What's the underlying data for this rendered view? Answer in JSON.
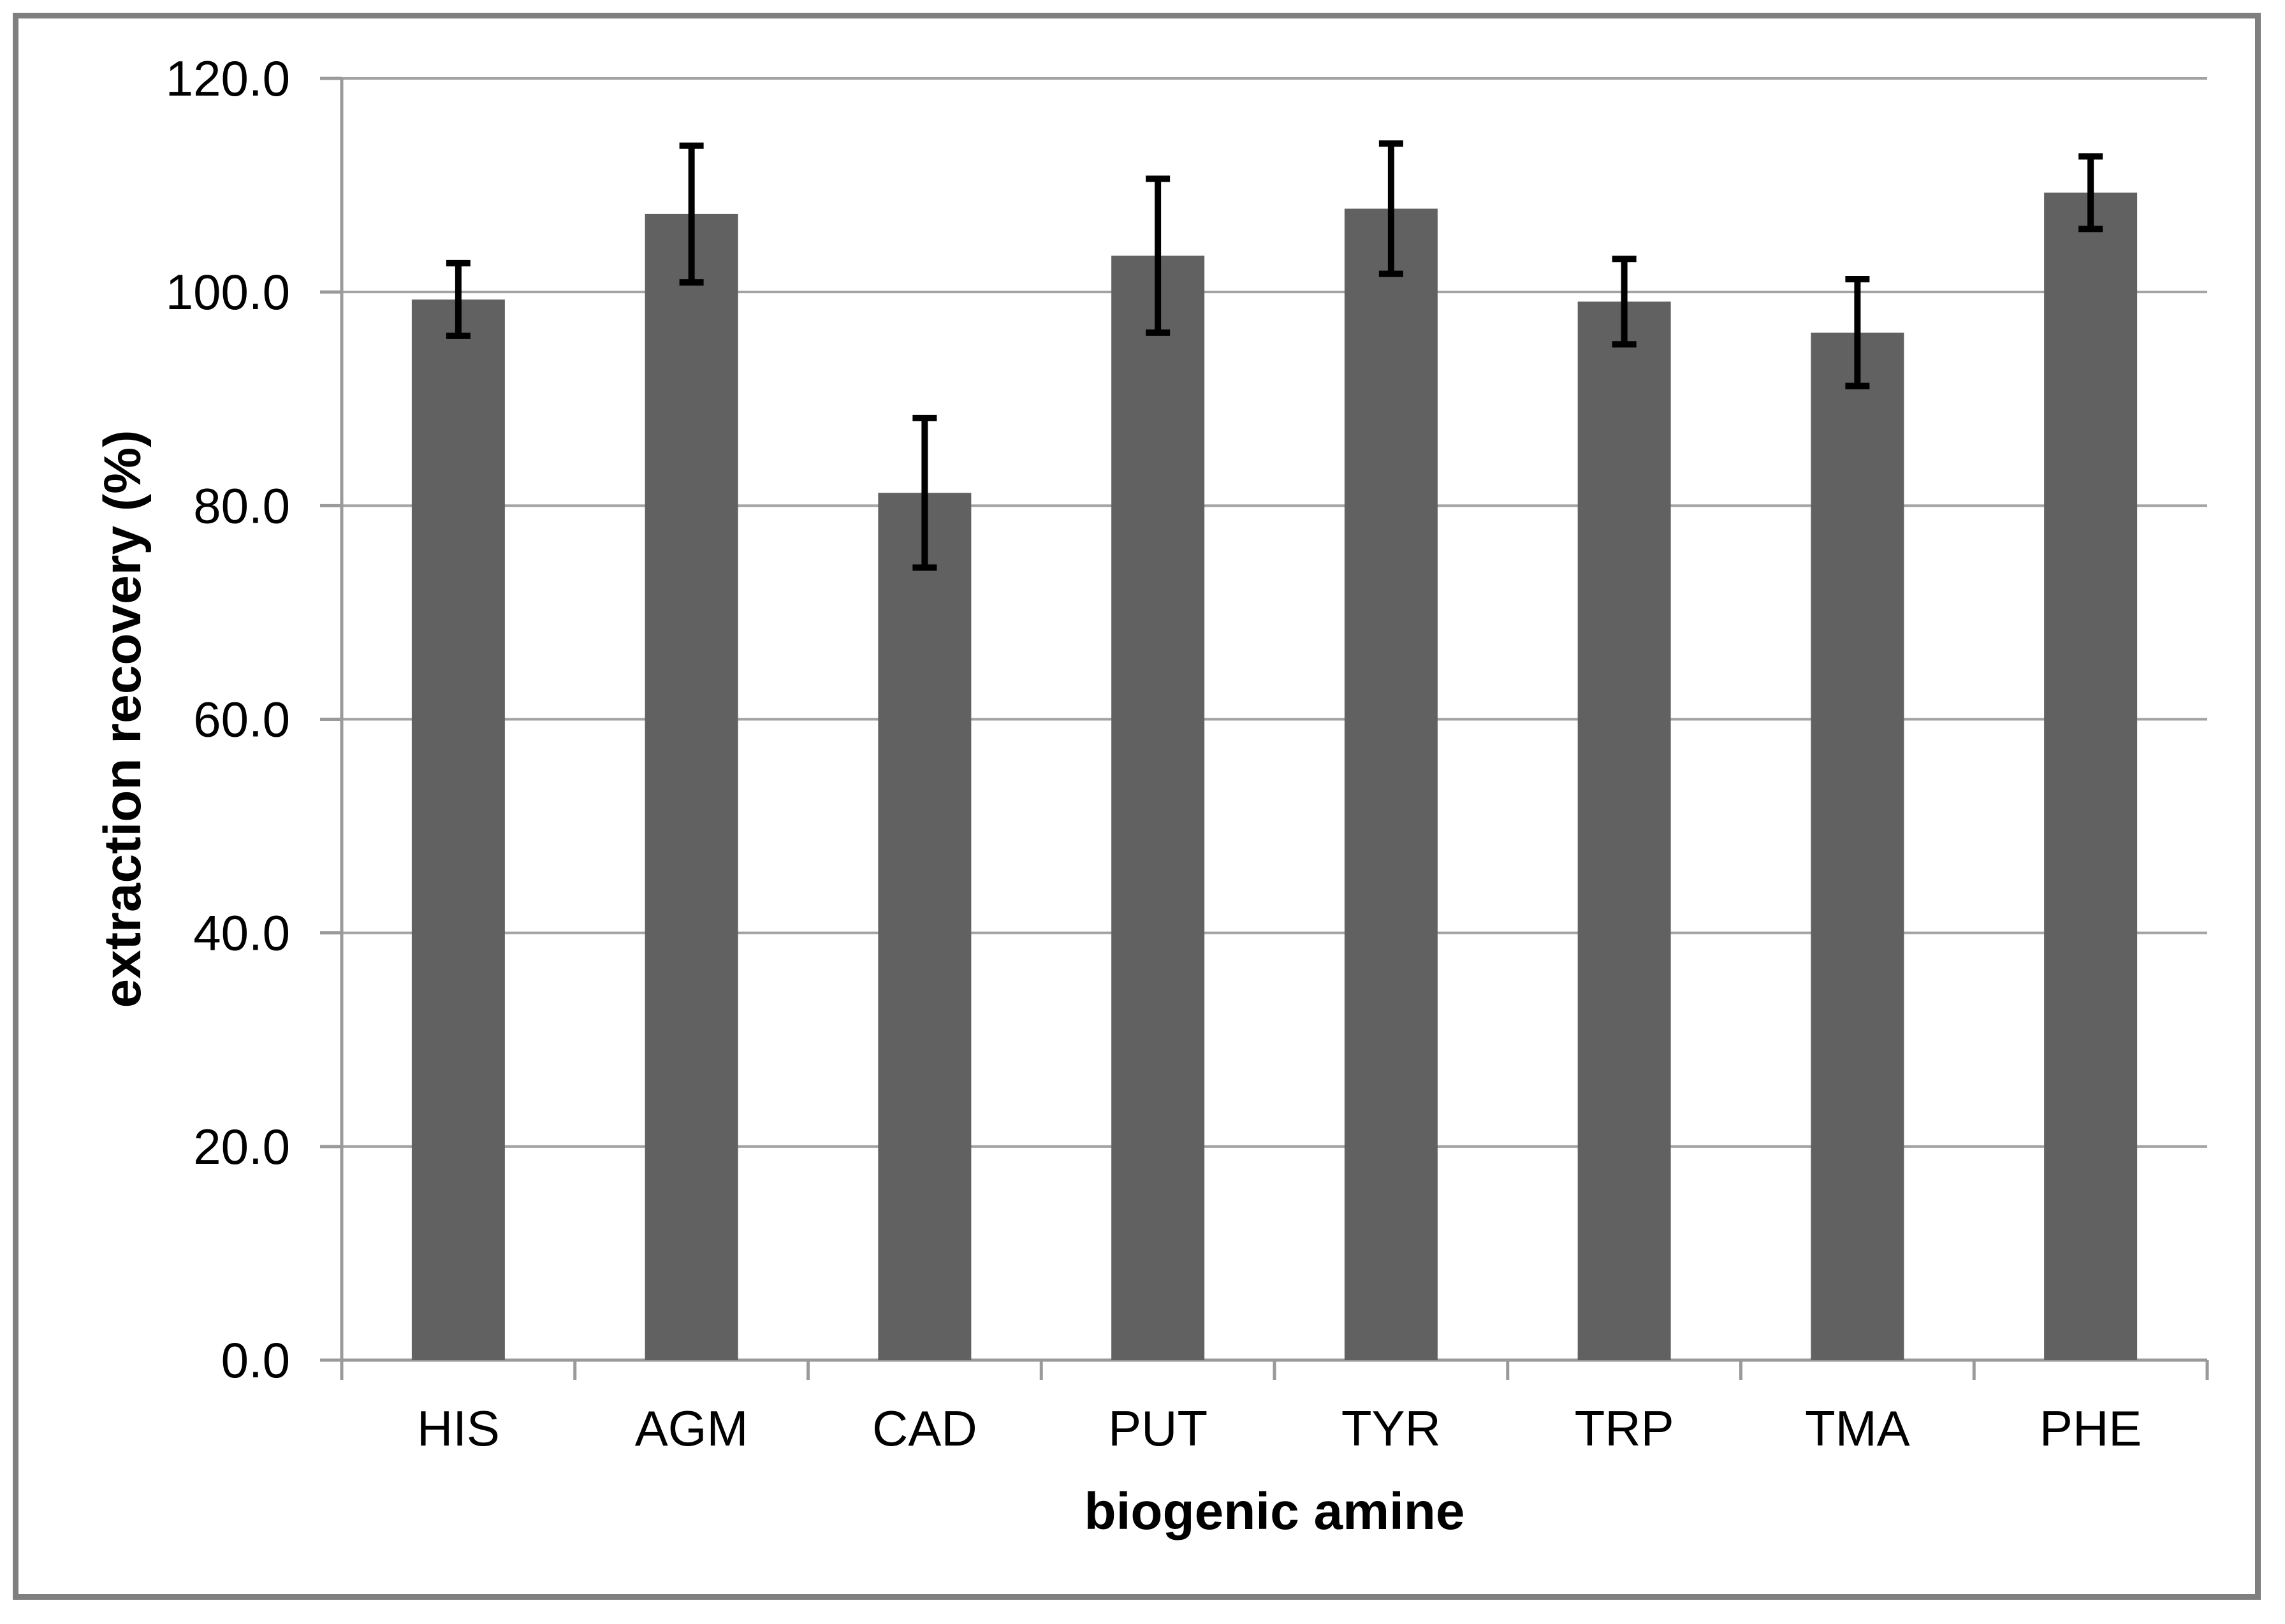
{
  "figure": {
    "background": "#ffffff",
    "border_color": "#7f7f7f"
  },
  "chart_data": {
    "type": "bar",
    "title": "",
    "xlabel": "biogenic amine",
    "ylabel": "extraction recovery (%)",
    "categories": [
      "HIS",
      "AGM",
      "CAD",
      "PUT",
      "TYR",
      "TRP",
      "TMA",
      "PHE"
    ],
    "series": [
      {
        "name": "extraction recovery",
        "values": [
          99.3,
          107.3,
          81.2,
          103.4,
          107.8,
          99.1,
          96.2,
          109.3
        ],
        "errors": [
          3.4,
          6.4,
          7.0,
          7.2,
          6.1,
          4.0,
          5.0,
          3.4
        ]
      }
    ],
    "ylim": [
      0,
      120
    ],
    "ytick_step": 20,
    "ytick_labels": [
      "0.0",
      "20.0",
      "40.0",
      "60.0",
      "80.0",
      "100.0",
      "120.0"
    ],
    "grid": "horizontal",
    "legend": "none",
    "bar_color": "#616161",
    "error_bar_color": "#000000",
    "gridline_color": "#a2a2a2",
    "axis_color": "#9a9a9a",
    "tick_label_color": "#000000"
  }
}
